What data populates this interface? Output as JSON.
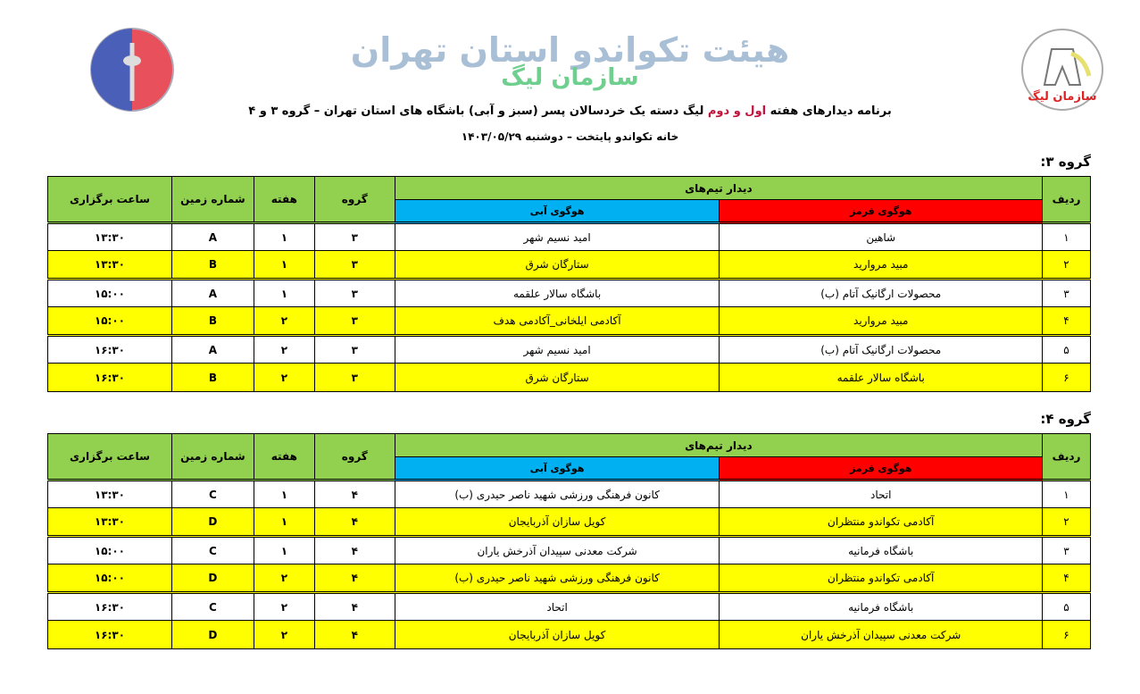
{
  "header": {
    "title": "هیئت تکواندو استان تهران",
    "subtitle": "سازمان لیگ",
    "desc_pre": "برنامه دیدارهای هفته ",
    "desc_hl": "اول و دوم",
    "desc_post": " لیگ دسته یک خردسالان پسر (سبز و آبی) باشگاه های استان تهران – گروه ۳ و ۴",
    "venue": "خانه تکواندو پایتخت  –  دوشنبه  ۱۴۰۳/۰۵/۲۹"
  },
  "logos": {
    "left": "TEHRAN TAEKWONDO",
    "right": "سازمان لیگ"
  },
  "columns": {
    "row": "ردیف",
    "match": "دیدار تیم‌های",
    "red": "هوگوی قرمز",
    "blue": "هوگوی آبی",
    "group": "گروه",
    "week": "هفته",
    "court": "شماره زمین",
    "time": "ساعت برگزاری"
  },
  "colors": {
    "header": "#92d050",
    "red": "#ff0000",
    "blue": "#00b0f0",
    "highlight": "#ffff00"
  },
  "groups": [
    {
      "title": "گروه ۳:",
      "rows": [
        {
          "n": "۱",
          "red": "شاهین",
          "blue": "امید نسیم شهر",
          "group": "۳",
          "week": "۱",
          "court": "A",
          "time": "۱۳:۳۰"
        },
        {
          "n": "۲",
          "red": "مبید مروارید",
          "blue": "ستارگان شرق",
          "group": "۳",
          "week": "۱",
          "court": "B",
          "time": "۱۳:۳۰"
        },
        {
          "n": "۳",
          "red": "محصولات ارگانیک آتام (ب)",
          "blue": "باشگاه سالار علقمه",
          "group": "۳",
          "week": "۱",
          "court": "A",
          "time": "۱۵:۰۰"
        },
        {
          "n": "۴",
          "red": "مبید مروارید",
          "blue": "آکادمی ایلخانی_آکادمی هدف",
          "group": "۳",
          "week": "۲",
          "court": "B",
          "time": "۱۵:۰۰"
        },
        {
          "n": "۵",
          "red": "محصولات ارگانیک آتام (ب)",
          "blue": "امید نسیم شهر",
          "group": "۳",
          "week": "۲",
          "court": "A",
          "time": "۱۶:۳۰"
        },
        {
          "n": "۶",
          "red": "باشگاه سالار علقمه",
          "blue": "ستارگان شرق",
          "group": "۳",
          "week": "۲",
          "court": "B",
          "time": "۱۶:۳۰"
        }
      ]
    },
    {
      "title": "گروه ۴:",
      "rows": [
        {
          "n": "۱",
          "red": "اتحاد",
          "blue": "کانون فرهنگی ورزشی شهید ناصر حیدری (ب)",
          "group": "۴",
          "week": "۱",
          "court": "C",
          "time": "۱۳:۳۰"
        },
        {
          "n": "۲",
          "red": "آکادمی تکواندو منتظران",
          "blue": "کویل سازان آذربایجان",
          "group": "۴",
          "week": "۱",
          "court": "D",
          "time": "۱۳:۳۰"
        },
        {
          "n": "۳",
          "red": "باشگاه فرمانیه",
          "blue": "شرکت معدنی سپیدان آذرخش یاران",
          "group": "۴",
          "week": "۱",
          "court": "C",
          "time": "۱۵:۰۰"
        },
        {
          "n": "۴",
          "red": "آکادمی تکواندو منتظران",
          "blue": "کانون فرهنگی ورزشی شهید ناصر حیدری (ب)",
          "group": "۴",
          "week": "۲",
          "court": "D",
          "time": "۱۵:۰۰"
        },
        {
          "n": "۵",
          "red": "باشگاه فرمانیه",
          "blue": "اتحاد",
          "group": "۴",
          "week": "۲",
          "court": "C",
          "time": "۱۶:۳۰"
        },
        {
          "n": "۶",
          "red": "شرکت معدنی سپیدان آذرخش یاران",
          "blue": "کویل سازان آذربایجان",
          "group": "۴",
          "week": "۲",
          "court": "D",
          "time": "۱۶:۳۰"
        }
      ]
    }
  ]
}
